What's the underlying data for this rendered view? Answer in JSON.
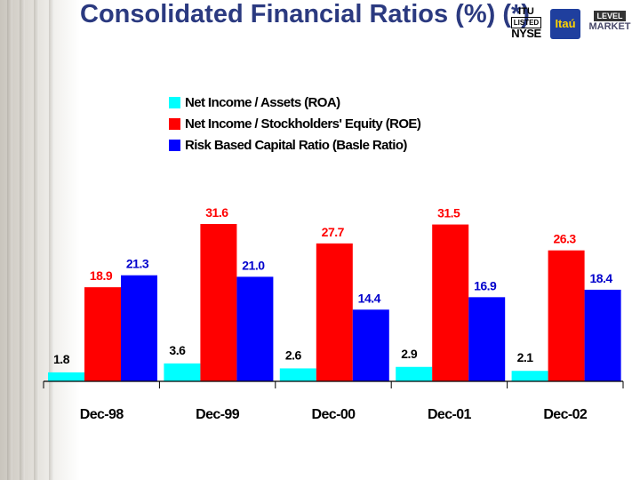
{
  "title": "Consolidated Financial Ratios (%) (*)",
  "logos": {
    "nyse_line1": "ITU",
    "nyse_line2": "LISTED",
    "nyse_line3": "NYSE",
    "itau": "Itaú",
    "market_line1": "LEVEL",
    "market_line2": "MARKET"
  },
  "chart_data": {
    "type": "bar",
    "title": "",
    "xlabel": "",
    "ylabel": "",
    "categories": [
      "Dec-98",
      "Dec-99",
      "Dec-00",
      "Dec-01",
      "Dec-02"
    ],
    "series": [
      {
        "name": "Net Income / Assets (ROA)",
        "color": "#00ffff",
        "values": [
          1.8,
          3.6,
          2.6,
          2.9,
          2.1
        ]
      },
      {
        "name": "Net Income / Stockholders' Equity (ROE)",
        "color": "#ff0000",
        "values": [
          18.9,
          31.6,
          27.7,
          31.5,
          26.3
        ]
      },
      {
        "name": "Risk Based Capital Ratio (Basle Ratio)",
        "color": "#0000ff",
        "values": [
          21.3,
          21.0,
          14.4,
          16.9,
          18.4
        ]
      }
    ],
    "data_label_colors": [
      "#000000",
      "#ff0000",
      "#0000cc"
    ],
    "legend_position": "top",
    "grid": false,
    "ylim": [
      0,
      34
    ]
  }
}
